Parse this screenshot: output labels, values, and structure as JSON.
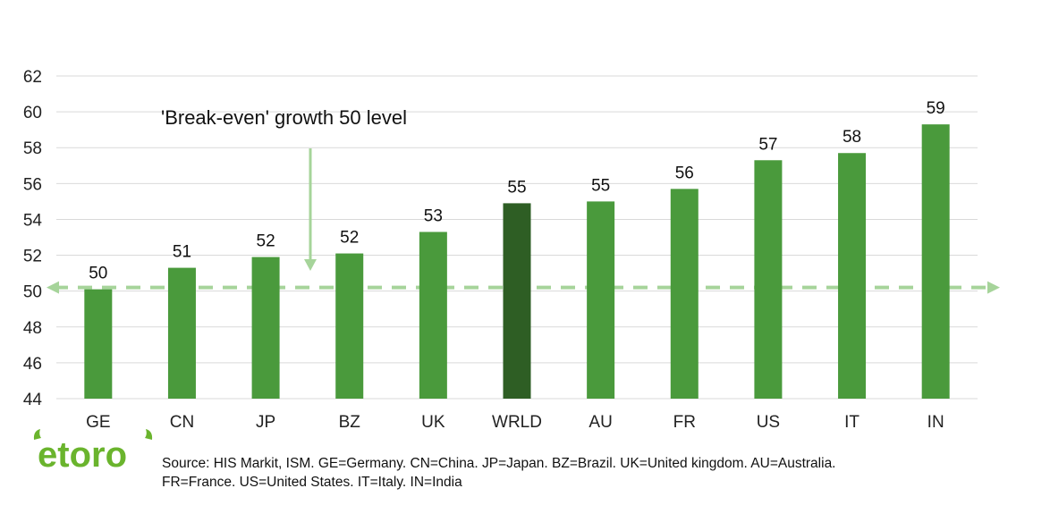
{
  "chart_data": {
    "type": "bar",
    "categories": [
      "GE",
      "CN",
      "JP",
      "BZ",
      "UK",
      "WRLD",
      "AU",
      "FR",
      "US",
      "IT",
      "IN"
    ],
    "values": [
      50.1,
      51.3,
      51.9,
      52.1,
      53.3,
      54.9,
      55.0,
      55.7,
      57.3,
      57.7,
      59.3
    ],
    "data_labels": [
      "50",
      "51",
      "52",
      "52",
      "53",
      "55",
      "55",
      "56",
      "57",
      "58",
      "59"
    ],
    "highlight_category": "WRLD",
    "ylim": [
      44,
      62
    ],
    "yticks": [
      "44",
      "46",
      "48",
      "50",
      "52",
      "54",
      "56",
      "58",
      "60",
      "62"
    ],
    "reference_line": 50.2,
    "annotation": "'Break-even' growth 50 level",
    "grid": true,
    "legend": "none",
    "colors": {
      "bar": "#4a9a3c",
      "highlight": "#2e5e24",
      "reference": "#a6d49a",
      "grid": "#d9d9d9"
    }
  },
  "logo": {
    "text": "etoro",
    "color": "#6ab42d"
  },
  "source": {
    "line1": "Source: HIS Markit, ISM. GE=Germany. CN=China. JP=Japan. BZ=Brazil. UK=United kingdom. AU=Australia.",
    "line2": "FR=France. US=United States. IT=Italy. IN=India"
  }
}
